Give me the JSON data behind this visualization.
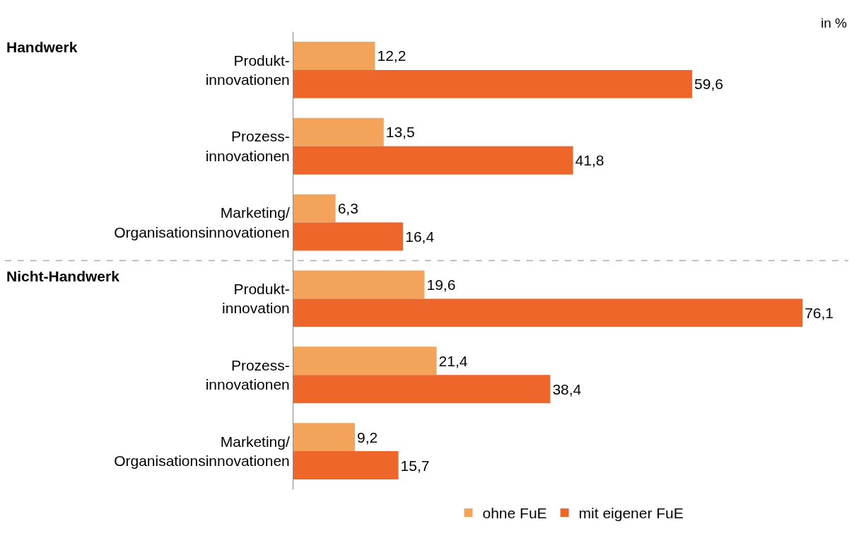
{
  "chart_data": {
    "type": "bar",
    "orientation": "horizontal",
    "categories": [
      "Produkt-\ninnovationen",
      "Prozess-\ninnovationen",
      "Marketing/\nOrganisationsinnovationen",
      "Produkt-\ninnovation",
      "Prozess-\ninnovationen",
      "Marketing/\nOrganisationsinnovationen"
    ],
    "series": [
      {
        "name": "ohne FuE",
        "color": "#f4a35a",
        "values": [
          12.2,
          13.5,
          6.3,
          19.6,
          21.4,
          9.2
        ],
        "value_labels": [
          "12,2",
          "13,5",
          "6,3",
          "19,6",
          "21,4",
          "9,2"
        ]
      },
      {
        "name": "mit eigener FuE",
        "color": "#ee6629",
        "values": [
          59.6,
          41.8,
          16.4,
          76.1,
          38.4,
          15.7
        ],
        "value_labels": [
          "59,6",
          "41,8",
          "16,4",
          "76,1",
          "38,4",
          "15,7"
        ]
      }
    ],
    "annotations": [
      "in %",
      "Handwerk",
      "Nicht-Handwerk"
    ],
    "legend": "bottom"
  }
}
